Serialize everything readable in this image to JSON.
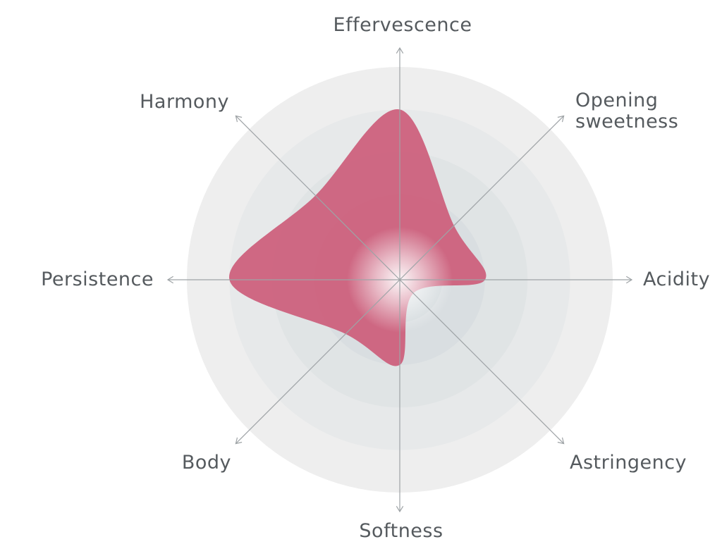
{
  "chart_data": {
    "type": "radar",
    "title": "",
    "axes": [
      {
        "key": "effervescence",
        "label_lines": [
          "Effervescence"
        ]
      },
      {
        "key": "opening_sweetness",
        "label_lines": [
          "Opening",
          "sweetness"
        ]
      },
      {
        "key": "acidity",
        "label_lines": [
          "Acidity"
        ]
      },
      {
        "key": "astringency",
        "label_lines": [
          "Astringency"
        ]
      },
      {
        "key": "softness",
        "label_lines": [
          "Softness"
        ]
      },
      {
        "key": "body",
        "label_lines": [
          "Body"
        ]
      },
      {
        "key": "persistence",
        "label_lines": [
          "Persistence"
        ]
      },
      {
        "key": "harmony",
        "label_lines": [
          "Harmony"
        ]
      }
    ],
    "series": [
      {
        "values": [
          4.0,
          1.8,
          2.0,
          0.45,
          2.0,
          1.8,
          4.0,
          2.8
        ]
      }
    ],
    "rings": 5,
    "range": [
      0,
      5
    ],
    "grid": true,
    "legend": "none"
  },
  "colors": {
    "fill": "#cc5a78",
    "ring_outer": "#eeeeee",
    "ring_inner": "#d2d9dc",
    "axis": "#9ea3a6",
    "label": "#555a5e"
  }
}
